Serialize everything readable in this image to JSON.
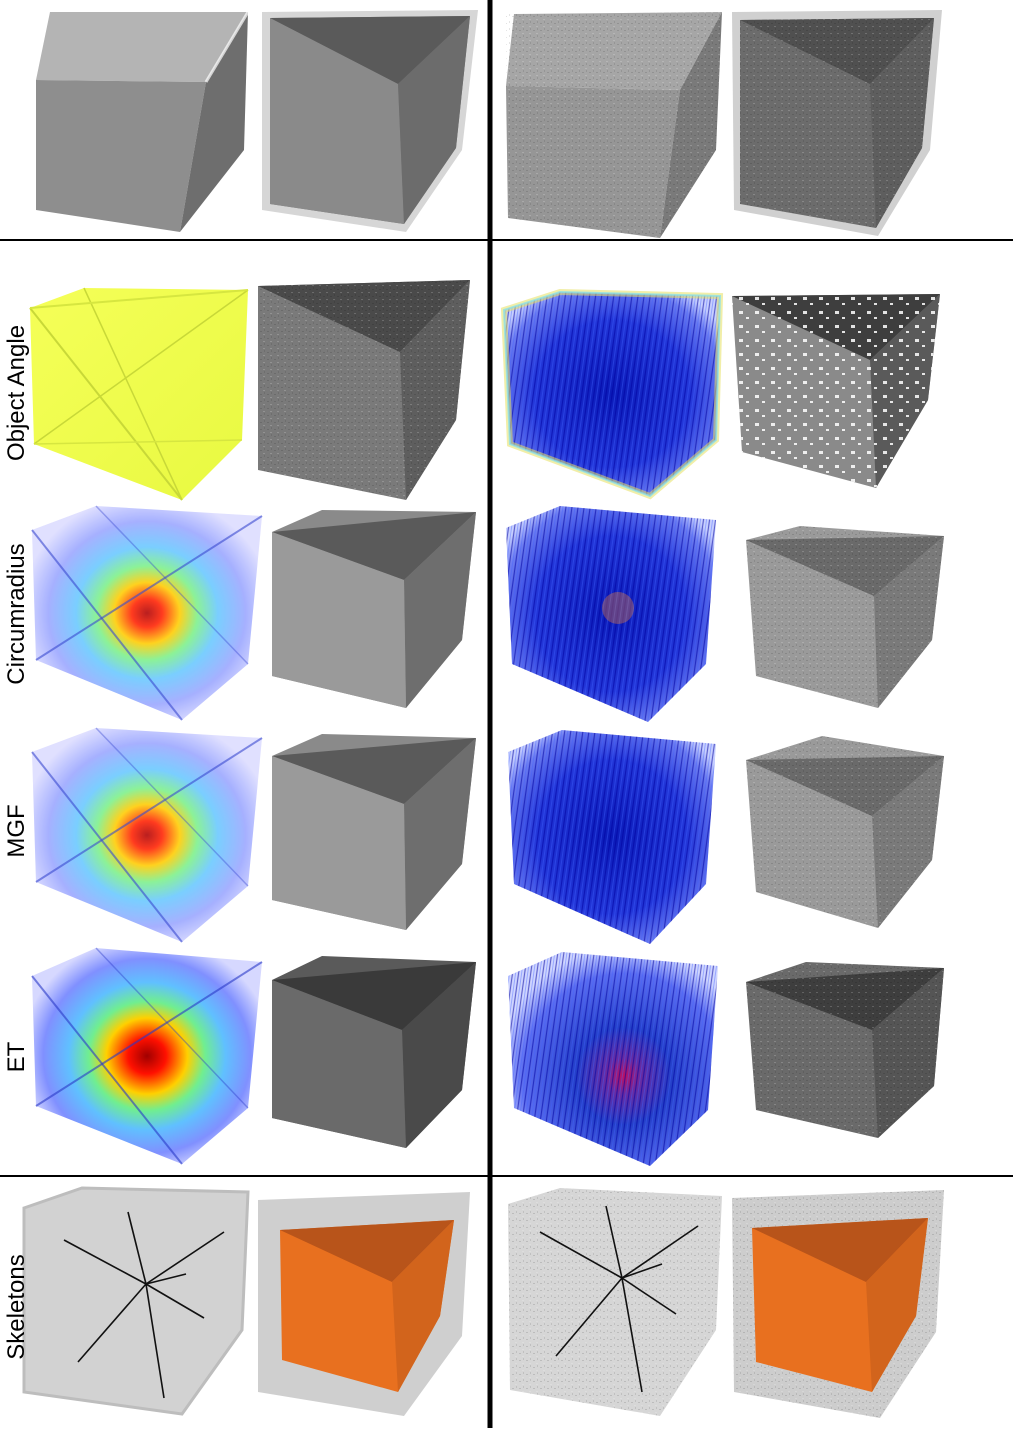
{
  "row_labels": {
    "object_angle": "Object Angle",
    "circumradius": "Circumradius",
    "mgf": "MGF",
    "et": "ET",
    "skeletons": "Skeletons"
  },
  "colors": {
    "background": "#ffffff",
    "divider": "#000000",
    "surface_gray": "#8e8e8e",
    "angle_yellow": "#f2ff38",
    "dense_blue": "#1f2fd8",
    "skeleton_orange": "#e8701f",
    "skeleton_shell": "#d2d2d2"
  },
  "icons": {
    "cube_render": "shaded-cube",
    "cube_cutaway": "open-cube-cutaway",
    "heatmap_cube": "translucent-colormap-cube",
    "skeleton_lines": "medial-skeleton-lines"
  }
}
